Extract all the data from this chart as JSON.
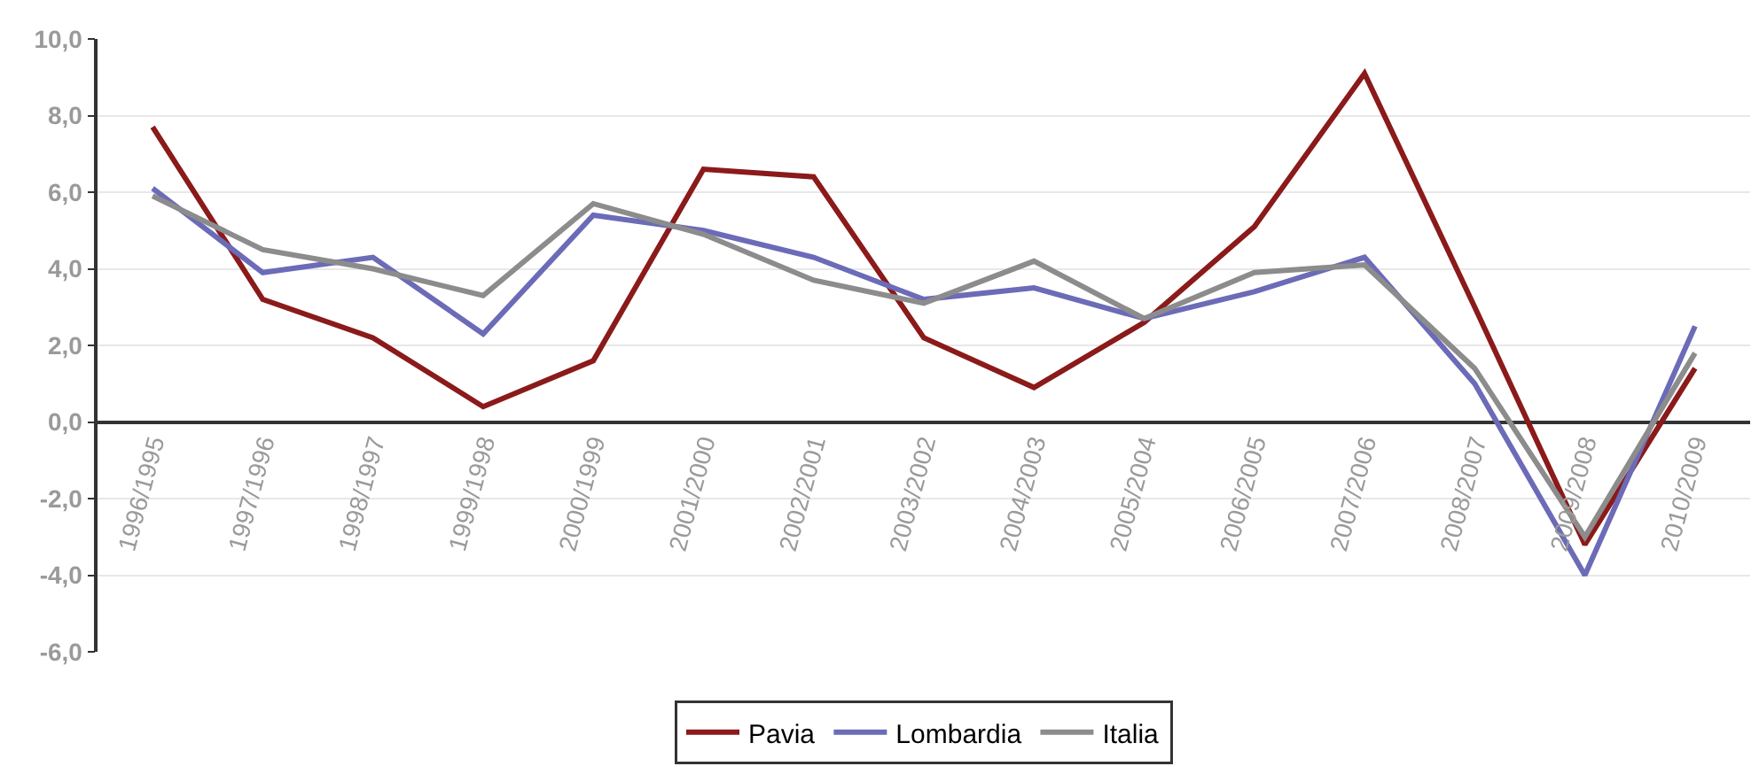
{
  "chart_data": {
    "type": "line",
    "categories": [
      "1996/1995",
      "1997/1996",
      "1998/1997",
      "1999/1998",
      "2000/1999",
      "2001/2000",
      "2002/2001",
      "2003/2002",
      "2004/2003",
      "2005/2004",
      "2006/2005",
      "2007/2006",
      "2008/2007",
      "2009/2008",
      "2010/2009"
    ],
    "series": [
      {
        "name": "Pavia",
        "color": "#8b1a1a",
        "values": [
          7.7,
          3.2,
          2.2,
          0.4,
          1.6,
          6.6,
          6.4,
          2.2,
          0.9,
          2.6,
          5.1,
          9.1,
          3.0,
          -3.2,
          1.4
        ]
      },
      {
        "name": "Lombardia",
        "color": "#6b6bb8",
        "values": [
          6.1,
          3.9,
          4.3,
          2.3,
          5.4,
          5.0,
          4.3,
          3.2,
          3.5,
          2.7,
          3.4,
          4.3,
          1.0,
          -4.0,
          2.5
        ]
      },
      {
        "name": "Italia",
        "color": "#8c8c8c",
        "values": [
          5.9,
          4.5,
          4.0,
          3.3,
          5.7,
          4.9,
          3.7,
          3.1,
          4.2,
          2.7,
          3.9,
          4.1,
          1.4,
          -3.0,
          1.8
        ]
      }
    ],
    "ylim": [
      -6,
      10
    ],
    "yticks": [
      {
        "value": -6,
        "label": "-6,0"
      },
      {
        "value": -4,
        "label": "-4,0"
      },
      {
        "value": -2,
        "label": "-2,0"
      },
      {
        "value": 0,
        "label": "0,0"
      },
      {
        "value": 2,
        "label": "2,0"
      },
      {
        "value": 4,
        "label": "4,0"
      },
      {
        "value": 6,
        "label": "6,0"
      },
      {
        "value": 8,
        "label": "8,0"
      },
      {
        "value": 10,
        "label": "10,0"
      }
    ],
    "grid": "y",
    "legend": "bottom",
    "marker": "none",
    "line_style": "solid"
  }
}
